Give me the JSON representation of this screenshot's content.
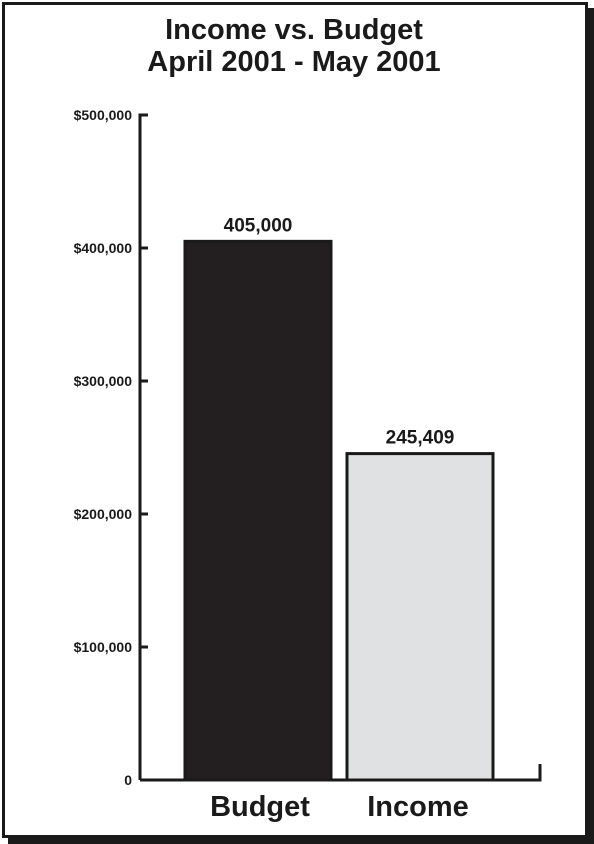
{
  "chart_data": {
    "type": "bar",
    "title": "Income vs. Budget",
    "subtitle": "April 2001 - May 2001",
    "categories": [
      "Budget",
      "Income"
    ],
    "values": [
      405000,
      245409
    ],
    "data_labels": [
      "405,000",
      "245,409"
    ],
    "colors": [
      "#231f20",
      "#e0e1e2"
    ],
    "ylim": [
      0,
      500000
    ],
    "yticks": [
      0,
      100000,
      200000,
      300000,
      400000,
      500000
    ],
    "ytick_labels": [
      "0",
      "$100,000",
      "$200,000",
      "$300,000",
      "$400,000",
      "$500,000"
    ],
    "xlabel": "",
    "ylabel": "",
    "grid": false,
    "legend": "none"
  }
}
